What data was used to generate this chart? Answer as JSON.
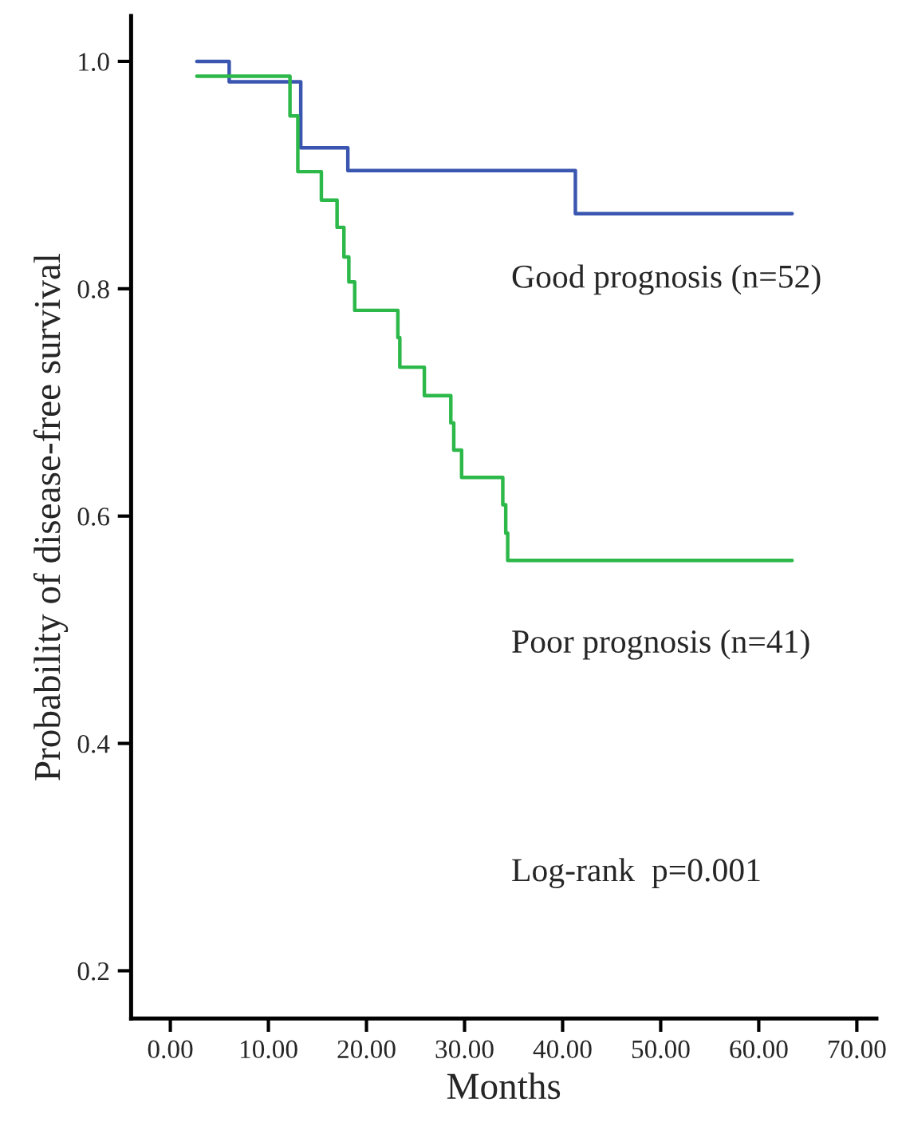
{
  "chart_data": {
    "type": "step",
    "xlabel": "Months",
    "ylabel": "Probability of disease-free survival",
    "series": [
      {
        "color": "#3a56b0",
        "x": [
          2.7,
          6.0,
          13.3,
          18.1,
          41.3,
          63.4
        ],
        "values": [
          1.0,
          0.982,
          0.924,
          0.904,
          0.866,
          0.866
        ]
      },
      {
        "color": "#2db84a",
        "x": [
          2.7,
          12.2,
          13.0,
          15.4,
          17.0,
          17.7,
          18.2,
          18.8,
          23.2,
          23.4,
          25.9,
          28.6,
          28.9,
          29.7,
          33.9,
          34.2,
          34.4,
          63.4
        ],
        "values": [
          0.987,
          0.952,
          0.903,
          0.878,
          0.854,
          0.828,
          0.806,
          0.781,
          0.757,
          0.731,
          0.706,
          0.682,
          0.658,
          0.634,
          0.61,
          0.585,
          0.561,
          0.561
        ]
      }
    ],
    "annotations": [
      "Good prognosis (n=52)",
      "Poor prognosis (n=41)",
      "Log-rank  p=0.001"
    ],
    "xlim": [
      -4,
      72
    ],
    "ylim": [
      0.158,
      1.04
    ],
    "xticks": [
      {
        "value": 0,
        "label": "0.00"
      },
      {
        "value": 10,
        "label": "10.00"
      },
      {
        "value": 20,
        "label": "20.00"
      },
      {
        "value": 30,
        "label": "30.00"
      },
      {
        "value": 40,
        "label": "40.00"
      },
      {
        "value": 50,
        "label": "50.00"
      },
      {
        "value": 60,
        "label": "60.00"
      },
      {
        "value": 70,
        "label": "70.00"
      }
    ],
    "yticks": [
      {
        "value": 0.2,
        "label": "0.2"
      },
      {
        "value": 0.4,
        "label": "0.4"
      },
      {
        "value": 0.6,
        "label": "0.6"
      },
      {
        "value": 0.8,
        "label": "0.8"
      },
      {
        "value": 1.0,
        "label": "1.0"
      }
    ],
    "grid": false
  }
}
